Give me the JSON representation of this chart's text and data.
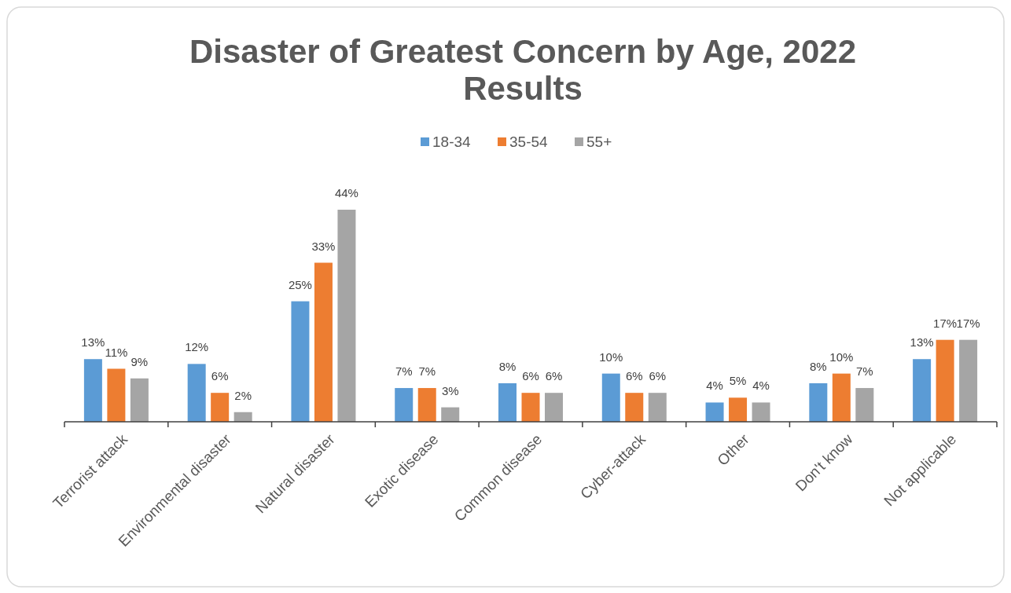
{
  "chart_data": {
    "type": "bar",
    "title": "Disaster of Greatest Concern by Age, 2022 Results",
    "categories": [
      "Terrorist attack",
      "Environmental disaster",
      "Natural disaster",
      "Exotic disease",
      "Common disease",
      "Cyber-attack",
      "Other",
      "Don't know",
      "Not applicable"
    ],
    "legend": "top",
    "series": [
      {
        "name": "18-34",
        "color": "#5b9bd5",
        "values": [
          13,
          12,
          25,
          7,
          8,
          10,
          4,
          8,
          13
        ],
        "value_labels": [
          "13%",
          "12%",
          "25%",
          "7%",
          "8%",
          "10%",
          "4%",
          "8%",
          "13%"
        ]
      },
      {
        "name": "35-54",
        "color": "#ed7d31",
        "values": [
          11,
          6,
          33,
          7,
          6,
          6,
          5,
          10,
          17
        ],
        "value_labels": [
          "11%",
          "6%",
          "33%",
          "7%",
          "6%",
          "6%",
          "5%",
          "10%",
          "17%"
        ]
      },
      {
        "name": "55+",
        "color": "#a5a5a5",
        "values": [
          9,
          2,
          44,
          3,
          6,
          6,
          4,
          7,
          17
        ],
        "value_labels": [
          "9%",
          "2%",
          "44%",
          "3%",
          "6%",
          "6%",
          "4%",
          "7%",
          "17%"
        ]
      }
    ]
  }
}
